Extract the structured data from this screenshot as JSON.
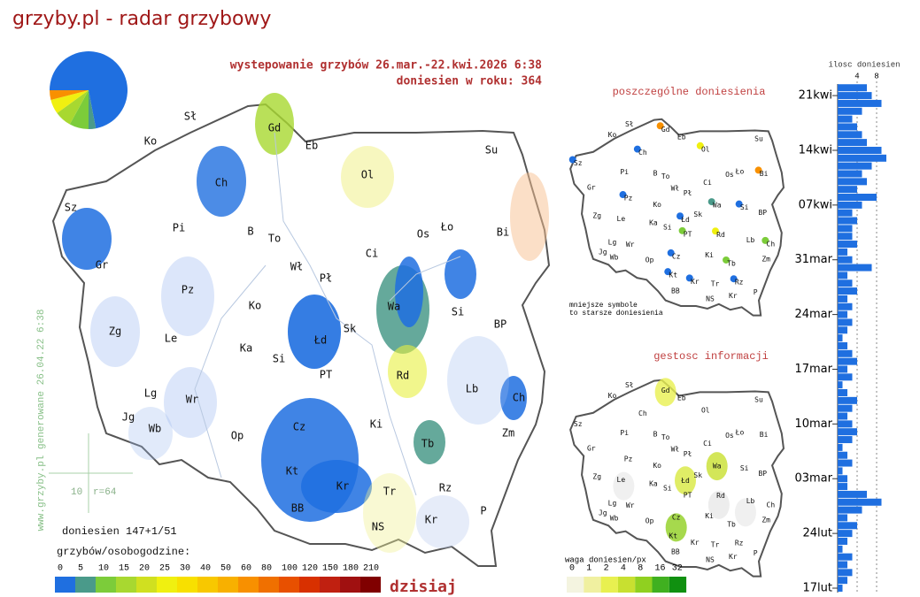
{
  "header": {
    "title": "grzyby.pl - radar grzybowy"
  },
  "main_map": {
    "title": "wystepowanie grzybów 26.mar.-22.kwi.2026  6:38",
    "subtitle": "doniesien w roku: 364",
    "labels": [
      "Sł",
      "Gd",
      "Eb",
      "Ko",
      "Su",
      "Ol",
      "Ch",
      "Sz",
      "Gr",
      "Pi",
      "B",
      "To",
      "Wł",
      "Ci",
      "Os",
      "Ło",
      "Bi",
      "Pł",
      "Pz",
      "Ko",
      "Wa",
      "Si",
      "BP",
      "Zg",
      "Le",
      "Ka",
      "Sk",
      "Łd",
      "Si",
      "PT",
      "Rd",
      "Lg",
      "Wr",
      "Lb",
      "Ch",
      "Jg",
      "Wb",
      "Op",
      "Ki",
      "Cz",
      "Tb",
      "Zm",
      "Kt",
      "Kr",
      "Tr",
      "Rz",
      "P",
      "BB",
      "NS",
      "Kr"
    ],
    "side_note": "www.grzyby.pl generowane 26.04.22  6:38",
    "scale_value": "10",
    "scale_radius": "r=64",
    "report_count": "doniesien 147+1/51",
    "legend_title": "grzybów/osobogodzine:",
    "legend_labels": [
      0,
      5,
      10,
      15,
      20,
      25,
      30,
      40,
      50,
      60,
      80,
      100,
      120,
      150,
      180,
      210
    ],
    "legend_colors": [
      "#1f6fe0",
      "#4a9a8a",
      "#7ccc3a",
      "#a8d830",
      "#d0e020",
      "#f0f010",
      "#f8e000",
      "#f8c800",
      "#f8b000",
      "#f89000",
      "#f07000",
      "#e85000",
      "#d83000",
      "#c02010",
      "#a01010",
      "#800000"
    ],
    "today_label": "dzisiaj",
    "pie": {
      "values": [
        72,
        3,
        8,
        7,
        6,
        4
      ],
      "colors": [
        "#1f6fe0",
        "#4a9a8a",
        "#7ccc3a",
        "#a8d830",
        "#f0f010",
        "#f89000"
      ]
    }
  },
  "reports_map": {
    "title": "poszczególne doniesienia",
    "note": [
      "mniejsze symbole",
      "to starsze doniesienia"
    ]
  },
  "density_map": {
    "title": "gestosc informacji",
    "legend_title": "waga doniesien/px",
    "legend_labels": [
      0,
      1,
      2,
      4,
      8,
      16,
      32
    ],
    "legend_colors": [
      "#f4f4e0",
      "#f0f0a0",
      "#e8f050",
      "#c8e030",
      "#90d020",
      "#40b020",
      "#109010"
    ]
  },
  "histogram": {
    "title": "ilosc doniesien",
    "color": "#1f6fe0",
    "categories": [
      "17lut",
      null,
      null,
      null,
      null,
      null,
      null,
      "24lut",
      null,
      null,
      null,
      null,
      null,
      null,
      "03mar",
      null,
      null,
      null,
      null,
      null,
      null,
      "10mar",
      null,
      null,
      null,
      null,
      null,
      null,
      "17mar",
      null,
      null,
      null,
      null,
      null,
      null,
      "24mar",
      null,
      null,
      null,
      null,
      null,
      null,
      "31mar",
      null,
      null,
      null,
      null,
      null,
      null,
      "07kwi",
      null,
      null,
      null,
      null,
      null,
      null,
      "14kwi",
      null,
      null,
      null,
      null,
      null,
      null,
      "21kwi",
      null
    ],
    "values": [
      1,
      2,
      3,
      2,
      3,
      1,
      2,
      3,
      4,
      2,
      5,
      9,
      6,
      2,
      2,
      1,
      3,
      2,
      1,
      3,
      4,
      3,
      2,
      3,
      4,
      2,
      1,
      3,
      2,
      4,
      3,
      2,
      1,
      2,
      3,
      2,
      3,
      2,
      4,
      3,
      2,
      7,
      3,
      2,
      4,
      3,
      3,
      4,
      3,
      5,
      8,
      4,
      6,
      5,
      7,
      10,
      9,
      6,
      5,
      4,
      3,
      5,
      9,
      7,
      6
    ],
    "xlim": [
      0,
      16
    ],
    "xticks": [
      4,
      8
    ]
  }
}
